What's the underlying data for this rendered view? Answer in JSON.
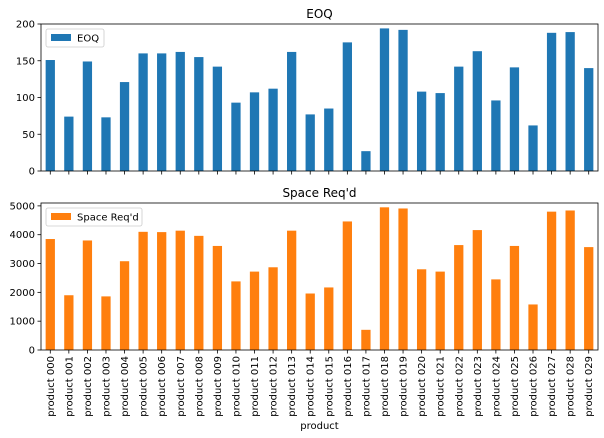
{
  "chart_data": [
    {
      "type": "bar",
      "title": "EOQ",
      "xlabel": "",
      "ylabel": "",
      "ylim": [
        0,
        200
      ],
      "yticks": [
        0,
        50,
        100,
        150,
        200
      ],
      "grid": false,
      "legend": {
        "placement": "top-left",
        "entries": [
          "EOQ"
        ]
      },
      "color": "#1f77b4",
      "categories": [
        "product 000",
        "product 001",
        "product 002",
        "product 003",
        "product 004",
        "product 005",
        "product 006",
        "product 007",
        "product 008",
        "product 009",
        "product 010",
        "product 011",
        "product 012",
        "product 013",
        "product 014",
        "product 015",
        "product 016",
        "product 017",
        "product 018",
        "product 019",
        "product 020",
        "product 021",
        "product 022",
        "product 023",
        "product 024",
        "product 025",
        "product 026",
        "product 027",
        "product 028",
        "product 029"
      ],
      "series": [
        {
          "name": "EOQ",
          "values": [
            151,
            74,
            149,
            73,
            121,
            160,
            160,
            162,
            155,
            142,
            93,
            107,
            112,
            162,
            77,
            85,
            175,
            27,
            194,
            192,
            108,
            106,
            142,
            163,
            96,
            141,
            62,
            188,
            189,
            140
          ]
        }
      ]
    },
    {
      "type": "bar",
      "title": "Space Req'd",
      "xlabel": "product",
      "ylabel": "",
      "ylim": [
        0,
        5100
      ],
      "yticks": [
        0,
        1000,
        2000,
        3000,
        4000,
        5000
      ],
      "grid": false,
      "legend": {
        "placement": "top-left",
        "entries": [
          "Space Req'd"
        ]
      },
      "color": "#ff7f0e",
      "categories": [
        "product 000",
        "product 001",
        "product 002",
        "product 003",
        "product 004",
        "product 005",
        "product 006",
        "product 007",
        "product 008",
        "product 009",
        "product 010",
        "product 011",
        "product 012",
        "product 013",
        "product 014",
        "product 015",
        "product 016",
        "product 017",
        "product 018",
        "product 019",
        "product 020",
        "product 021",
        "product 022",
        "product 023",
        "product 024",
        "product 025",
        "product 026",
        "product 027",
        "product 028",
        "product 029"
      ],
      "series": [
        {
          "name": "Space Req'd",
          "values": [
            3850,
            1900,
            3800,
            1860,
            3080,
            4100,
            4090,
            4140,
            3960,
            3610,
            2380,
            2720,
            2870,
            4140,
            1960,
            2170,
            4460,
            700,
            4950,
            4910,
            2800,
            2720,
            3640,
            4160,
            2450,
            3610,
            1580,
            4800,
            4840,
            3570
          ]
        }
      ]
    }
  ]
}
